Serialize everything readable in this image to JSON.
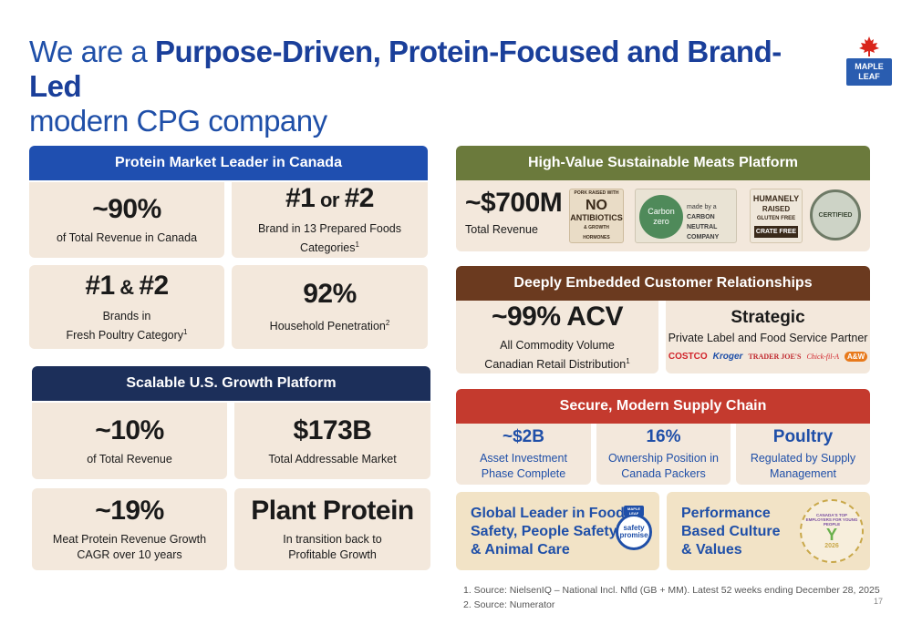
{
  "title": {
    "prefix": "We are a ",
    "bold": "Purpose-Driven, Protein-Focused and Brand-Led",
    "line2": "modern CPG company"
  },
  "logo": {
    "line1": "MAPLE",
    "line2": "LEAF",
    "icon": "maple-leaf-icon",
    "color": "#2a5db0",
    "leaf_color": "#d9261c"
  },
  "canada": {
    "header": "Protein Market Leader in Canada",
    "header_color": "#1f4fb0",
    "cards": [
      {
        "big": "~90%",
        "sub": "of Total Revenue in Canada"
      },
      {
        "big_a": "#1",
        "big_or": " or ",
        "big_b": "#2",
        "sub": "Brand in 13 Prepared Foods Categories",
        "sup": "1"
      },
      {
        "big_a": "#1",
        "big_or": " & ",
        "big_b": "#2",
        "sub1": "Brands in",
        "sub2": "Fresh Poultry Category",
        "sup": "1"
      },
      {
        "big": "92%",
        "sub": "Household Penetration",
        "sup": "2"
      }
    ]
  },
  "us": {
    "header": "Scalable U.S. Growth Platform",
    "header_color": "#1c2f5a",
    "cards": [
      {
        "big": "~10%",
        "sub": "of Total Revenue"
      },
      {
        "big": "$173B",
        "sub": "Total Addressable Market"
      },
      {
        "big": "~19%",
        "sub1": "Meat Protein Revenue Growth",
        "sub2": "CAGR over 10 years"
      },
      {
        "big": "Plant Protein",
        "sub1": "In transition back to",
        "sub2": "Profitable Growth"
      }
    ]
  },
  "sustainable": {
    "header": "High-Value Sustainable Meats Platform",
    "header_color": "#6b7a3c",
    "big": "~$700M",
    "sub": "Total Revenue",
    "badges": {
      "nab_top": "PORK RAISED WITH",
      "nab_no": "NO",
      "nab_mid": "ANTIBIOTICS",
      "nab_bot": "& GROWTH HORMONES",
      "carbon_a": "Carbon",
      "carbon_b": "zero",
      "carbon_made": "made by a",
      "carbon_cn": "CARBON NEUTRAL",
      "carbon_co": "COMPANY",
      "humane_a": "HUMANELY",
      "humane_b": "RAISED",
      "humane_c": "GLUTEN FREE",
      "humane_d": "CRATE FREE",
      "certified": "CERTIFIED"
    }
  },
  "relationships": {
    "header": "Deeply Embedded Customer Relationships",
    "header_color": "#6b3a1f",
    "left_big": "~99% ACV",
    "left_sub1": "All Commodity Volume",
    "left_sub2": "Canadian Retail Distribution",
    "left_sup": "1",
    "right_big": "Strategic",
    "right_sub": "Private Label and Food Service Partner",
    "partners": [
      "COSTCO",
      "Kroger",
      "TRADER JOE'S",
      "Chick-fil-A",
      "A&W"
    ]
  },
  "supply": {
    "header": "Secure, Modern Supply Chain",
    "header_color": "#c43a2e",
    "cards": [
      {
        "big": "~$2B",
        "sub1": "Asset Investment",
        "sub2": "Phase Complete"
      },
      {
        "big": "16%",
        "sub1": "Ownership Position in",
        "sub2": "Canada Packers"
      },
      {
        "big": "Poultry",
        "sub1": "Regulated by Supply",
        "sub2": "Management"
      }
    ]
  },
  "safety": {
    "line1": "Global Leader in Food",
    "line2": "Safety, People Safety",
    "line3": "& Animal Care",
    "badge_top": "MAPLE LEAF",
    "badge_a": "safety",
    "badge_b": "promise"
  },
  "culture": {
    "line1": "Performance",
    "line2": "Based Culture",
    "line3": "& Values",
    "seal_text": "CANADA'S TOP EMPLOYERS FOR YOUNG PEOPLE",
    "seal_year": "2026"
  },
  "footnotes": [
    "1.   Source: NielsenIQ – National Incl. Nfld (GB + MM). Latest 52 weeks ending December 28, 2025",
    "2.   Source: Numerator"
  ],
  "page_number": "17"
}
